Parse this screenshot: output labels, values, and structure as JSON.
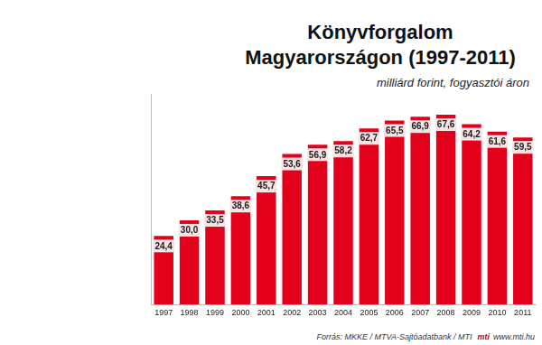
{
  "chart_data": {
    "type": "bar",
    "title": "Könyvforgalom Magyarországon (1997-2011)",
    "subtitle": "milliárd forint, fogyasztói áron",
    "source": "Forrás: MKKE / MTVA-Sajtóadatbank / MTI",
    "annotations": [
      "mti",
      "www.mti.hu"
    ],
    "categories": [
      "1997",
      "1998",
      "1999",
      "2000",
      "2001",
      "2002",
      "2003",
      "2004",
      "2005",
      "2006",
      "2007",
      "2008",
      "2009",
      "2010",
      "2011"
    ],
    "values": [
      24.4,
      30.0,
      33.5,
      38.6,
      45.7,
      53.6,
      56.9,
      58.2,
      62.7,
      65.5,
      66.9,
      67.6,
      64.2,
      61.6,
      59.5
    ],
    "value_labels": [
      "24,4",
      "30,0",
      "33,5",
      "38,6",
      "45,7",
      "53,6",
      "56,9",
      "58,2",
      "62,7",
      "65,5",
      "66,9",
      "67,6",
      "64,2",
      "61,6",
      "59,5"
    ],
    "color": "#e2001a",
    "ylim": [
      0,
      75
    ],
    "grid": false,
    "data_labels": true,
    "tick_labels": "x"
  }
}
